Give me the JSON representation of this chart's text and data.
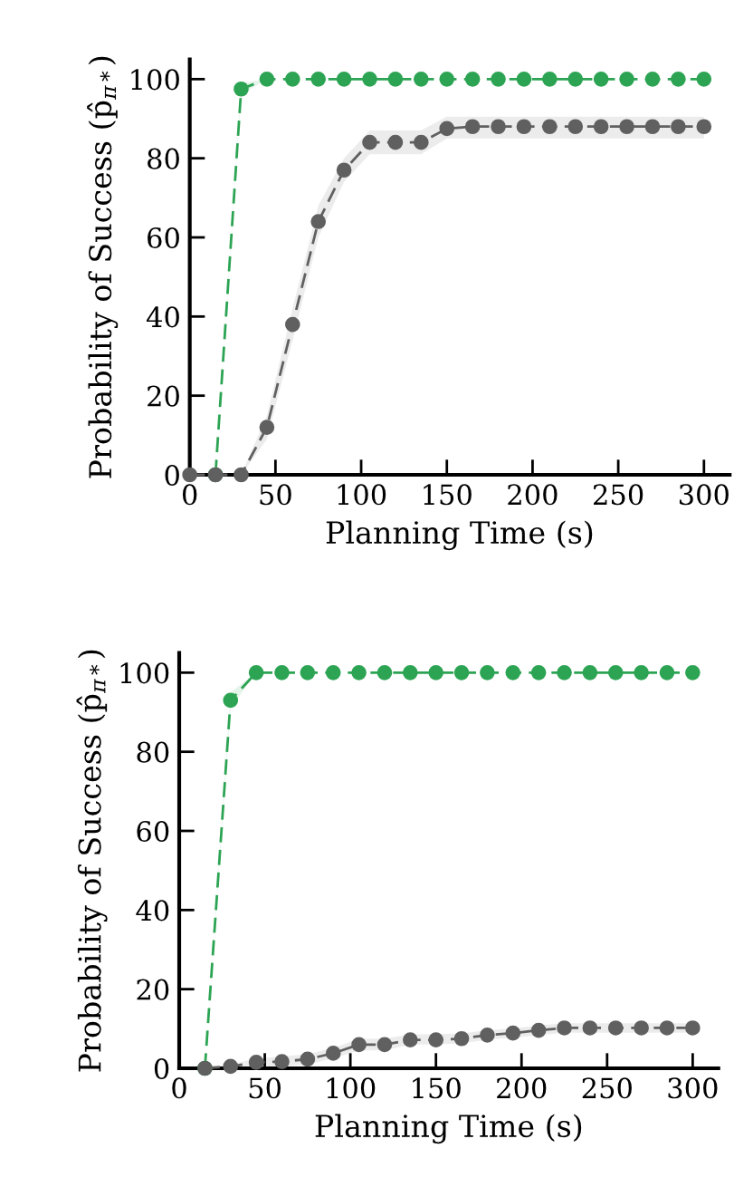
{
  "chart_data": [
    {
      "type": "line",
      "xlabel": "Planning Time (s)",
      "ylabel": "Probability of Success (p̂$_{π*}$)",
      "xlim": [
        0,
        315
      ],
      "xticks": [
        0,
        50,
        100,
        150,
        200,
        250,
        300
      ],
      "ylim": [
        0,
        105
      ],
      "yticks": [
        0,
        20,
        40,
        60,
        80,
        100
      ],
      "grid": false,
      "legend": false,
      "marker": "circle",
      "line_style": "dashed",
      "series": [
        {
          "color": "#2ca453",
          "x": [
            15,
            30,
            45,
            60,
            75,
            90,
            105,
            120,
            135,
            150,
            165,
            180,
            195,
            210,
            225,
            240,
            255,
            270,
            285,
            300
          ],
          "values": [
            0,
            97.5,
            100,
            100,
            100,
            100,
            100,
            100,
            100,
            100,
            100,
            100,
            100,
            100,
            100,
            100,
            100,
            100,
            100,
            100
          ],
          "lower": [
            0,
            96,
            100,
            100,
            100,
            100,
            100,
            100,
            100,
            100,
            100,
            100,
            100,
            100,
            100,
            100,
            100,
            100,
            100,
            100
          ],
          "upper": [
            0,
            99,
            100,
            100,
            100,
            100,
            100,
            100,
            100,
            100,
            100,
            100,
            100,
            100,
            100,
            100,
            100,
            100,
            100,
            100
          ]
        },
        {
          "color": "#606060",
          "x": [
            0,
            15,
            30,
            45,
            60,
            75,
            90,
            105,
            120,
            135,
            150,
            165,
            180,
            195,
            210,
            225,
            240,
            255,
            270,
            285,
            300
          ],
          "values": [
            0,
            0,
            0,
            12,
            38,
            64,
            77,
            84,
            84,
            84,
            87.5,
            88,
            88,
            88,
            88,
            88,
            88,
            88,
            88,
            88,
            88
          ],
          "lower": [
            0,
            0,
            0,
            9,
            34,
            60,
            74,
            81,
            81,
            81,
            85,
            85,
            85,
            85,
            85,
            85,
            85,
            85,
            85,
            85,
            85
          ],
          "upper": [
            0,
            0,
            0,
            15,
            42,
            68,
            80,
            87,
            87,
            87,
            90.5,
            90.5,
            90.5,
            90.5,
            90.5,
            90.5,
            90.5,
            90.5,
            90.5,
            90.5,
            90.5
          ]
        }
      ]
    },
    {
      "type": "line",
      "xlabel": "Planning Time (s)",
      "ylabel": "Probability of Success (p̂$_{π*}$)",
      "xlim": [
        0,
        315
      ],
      "xticks": [
        0,
        50,
        100,
        150,
        200,
        250,
        300
      ],
      "ylim": [
        0,
        105
      ],
      "yticks": [
        0,
        20,
        40,
        60,
        80,
        100
      ],
      "grid": false,
      "legend": false,
      "marker": "circle",
      "line_style": "dashed",
      "series": [
        {
          "color": "#2ca453",
          "x": [
            15,
            30,
            45,
            60,
            75,
            90,
            105,
            120,
            135,
            150,
            165,
            180,
            195,
            210,
            225,
            240,
            255,
            270,
            285,
            300
          ],
          "values": [
            0,
            93,
            100,
            100,
            100,
            100,
            100,
            100,
            100,
            100,
            100,
            100,
            100,
            100,
            100,
            100,
            100,
            100,
            100,
            100
          ],
          "lower": [
            0,
            91,
            100,
            100,
            100,
            100,
            100,
            100,
            100,
            100,
            100,
            100,
            100,
            100,
            100,
            100,
            100,
            100,
            100,
            100
          ],
          "upper": [
            0,
            95,
            100,
            100,
            100,
            100,
            100,
            100,
            100,
            100,
            100,
            100,
            100,
            100,
            100,
            100,
            100,
            100,
            100,
            100
          ]
        },
        {
          "color": "#606060",
          "x": [
            15,
            30,
            45,
            60,
            75,
            90,
            105,
            120,
            135,
            150,
            165,
            180,
            195,
            210,
            225,
            240,
            255,
            270,
            285,
            300
          ],
          "values": [
            0,
            0.5,
            1.5,
            1.7,
            2.3,
            3.8,
            6,
            6,
            7.2,
            7.2,
            7.5,
            8.4,
            8.9,
            9.6,
            10.2,
            10.2,
            10.2,
            10.2,
            10.2,
            10.2
          ],
          "lower": [
            0,
            0,
            0.5,
            0.5,
            1,
            2.5,
            4.5,
            4.5,
            6,
            6,
            6.3,
            7.2,
            7.7,
            8.4,
            9,
            9,
            9,
            9,
            9,
            9
          ],
          "upper": [
            0,
            1,
            2.5,
            3,
            3.6,
            5.1,
            7.5,
            7.5,
            8.6,
            8.6,
            8.8,
            9.6,
            10.1,
            10.8,
            11.4,
            11.4,
            11.4,
            11.4,
            11.4,
            11.4
          ]
        }
      ]
    }
  ]
}
